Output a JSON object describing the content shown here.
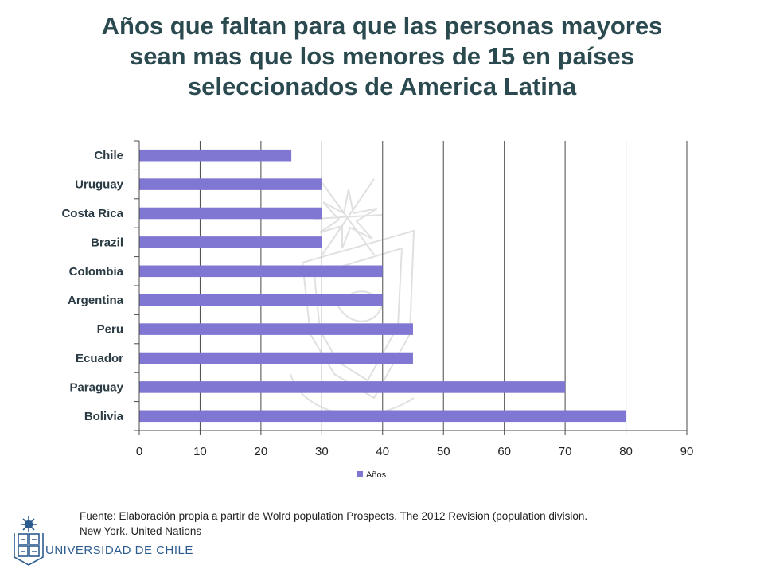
{
  "title_lines": [
    "Años que faltan para que las personas mayores",
    "sean mas que  los menores de 15  en países",
    "seleccionados de America Latina"
  ],
  "chart_data": {
    "type": "bar",
    "orientation": "horizontal",
    "categories": [
      "Chile",
      "Uruguay",
      "Costa Rica",
      "Brazil",
      "Colombia",
      "Argentina",
      "Peru",
      "Ecuador",
      "Paraguay",
      "Bolivia"
    ],
    "series": [
      {
        "name": "Años",
        "values": [
          25,
          30,
          30,
          30,
          40,
          40,
          45,
          45,
          70,
          80
        ]
      }
    ],
    "xlim": [
      0,
      90
    ],
    "xticks": [
      0,
      10,
      20,
      30,
      40,
      50,
      60,
      70,
      80,
      90
    ],
    "grid": true,
    "legend": "bottom",
    "bar_color": "#7f77d2",
    "grid_color": "#4a4a4a"
  },
  "source_lines": [
    "Fuente:  Elaboración propia a partir de Wolrd population Prospects. The 2012  Revision (population division.",
    "New York. United Nations"
  ],
  "logo": {
    "name": "UNIVERSIDAD DE CHILE",
    "color": "#2d5d8f"
  }
}
